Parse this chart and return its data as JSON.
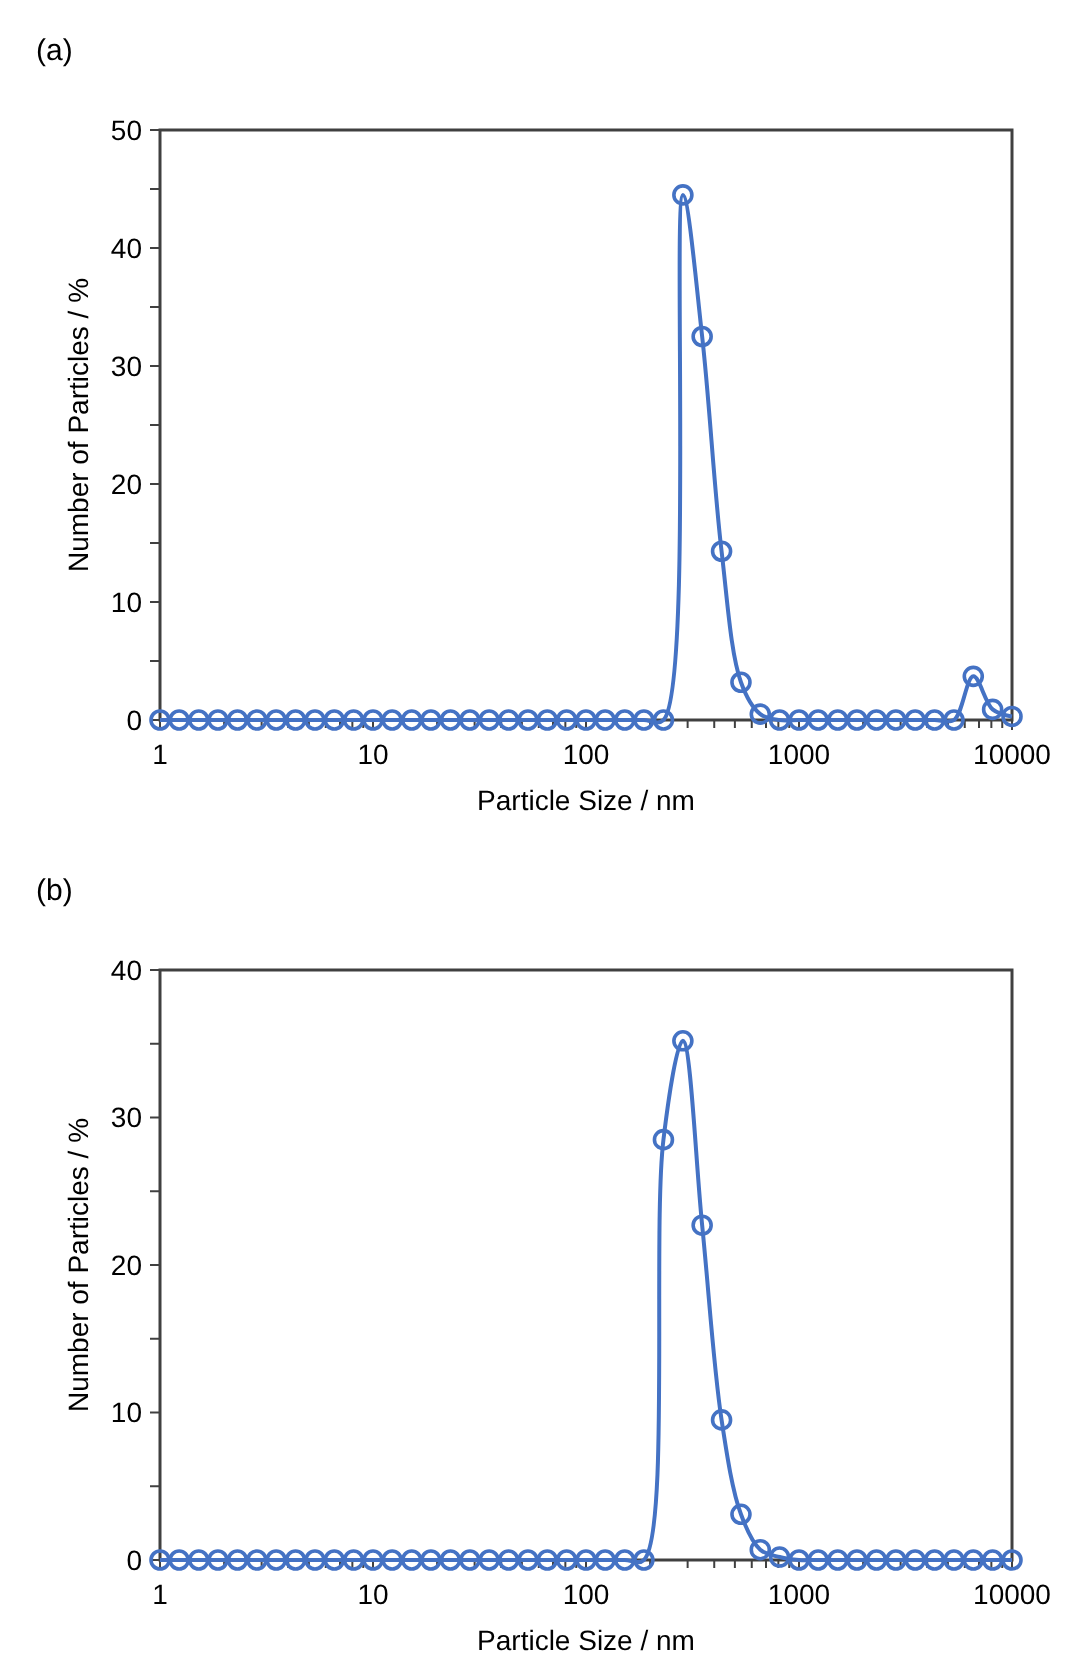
{
  "chart_data": [
    {
      "type": "line",
      "title": "(a)",
      "xlabel": "Particle Size / nm",
      "ylabel": "Number of Particles / %",
      "log": "x",
      "marker": "circle",
      "line_style": "solid",
      "grid": false,
      "xlim": [
        1,
        10000
      ],
      "ylim": [
        0,
        50
      ],
      "xticks": [
        1,
        {
          "value": 2,
          "label": null
        },
        {
          "value": 3,
          "label": null
        },
        {
          "value": 4,
          "label": null
        },
        {
          "value": 5,
          "label": null
        },
        {
          "value": 6,
          "label": null
        },
        {
          "value": 7,
          "label": null
        },
        {
          "value": 8,
          "label": null
        },
        {
          "value": 9,
          "label": null
        },
        10,
        {
          "value": 20,
          "label": null
        },
        {
          "value": 30,
          "label": null
        },
        {
          "value": 40,
          "label": null
        },
        {
          "value": 50,
          "label": null
        },
        {
          "value": 60,
          "label": null
        },
        {
          "value": 70,
          "label": null
        },
        {
          "value": 80,
          "label": null
        },
        {
          "value": 90,
          "label": null
        },
        100,
        {
          "value": 200,
          "label": null
        },
        {
          "value": 300,
          "label": null
        },
        {
          "value": 400,
          "label": null
        },
        {
          "value": 500,
          "label": null
        },
        {
          "value": 600,
          "label": null
        },
        {
          "value": 700,
          "label": null
        },
        {
          "value": 800,
          "label": null
        },
        {
          "value": 900,
          "label": null
        },
        1000,
        {
          "value": 2000,
          "label": null
        },
        {
          "value": 3000,
          "label": null
        },
        {
          "value": 4000,
          "label": null
        },
        {
          "value": 5000,
          "label": null
        },
        {
          "value": 6000,
          "label": null
        },
        {
          "value": 7000,
          "label": null
        },
        {
          "value": 8000,
          "label": null
        },
        {
          "value": 9000,
          "label": null
        },
        10000
      ],
      "yticks": [
        0,
        {
          "value": 5,
          "label": null
        },
        10,
        {
          "value": 15,
          "label": null
        },
        20,
        {
          "value": 25,
          "label": null
        },
        30,
        {
          "value": 35,
          "label": null
        },
        40,
        {
          "value": 45,
          "label": null
        },
        50
      ],
      "x": [
        1,
        1.23,
        1.52,
        1.87,
        2.31,
        2.85,
        3.51,
        4.33,
        5.34,
        6.58,
        8.11,
        10,
        12.3,
        15.2,
        18.7,
        23.1,
        28.5,
        35.1,
        43.3,
        53.4,
        65.8,
        81.1,
        100,
        123,
        152,
        187,
        231,
        285,
        351,
        433,
        534,
        658,
        811,
        1000,
        1230,
        1520,
        1870,
        2310,
        2850,
        3510,
        4330,
        5340,
        6580,
        8110,
        10000
      ],
      "series": [
        {
          "color": "#4472c4",
          "values": [
            0,
            0,
            0,
            0,
            0,
            0,
            0,
            0,
            0,
            0,
            0,
            0,
            0,
            0,
            0,
            0,
            0,
            0,
            0,
            0,
            0,
            0,
            0,
            0,
            0,
            0,
            0,
            44.5,
            32.5,
            14.3,
            3.2,
            0.5,
            0,
            0,
            0,
            0,
            0,
            0,
            0,
            0,
            0,
            0,
            3.7,
            0.9,
            0.3
          ]
        }
      ]
    },
    {
      "type": "line",
      "title": "(b)",
      "xlabel": "Particle Size / nm",
      "ylabel": "Number of Particles / %",
      "log": "x",
      "marker": "circle",
      "line_style": "solid",
      "grid": false,
      "xlim": [
        1,
        10000
      ],
      "ylim": [
        0,
        40
      ],
      "xticks": [
        1,
        {
          "value": 2,
          "label": null
        },
        {
          "value": 3,
          "label": null
        },
        {
          "value": 4,
          "label": null
        },
        {
          "value": 5,
          "label": null
        },
        {
          "value": 6,
          "label": null
        },
        {
          "value": 7,
          "label": null
        },
        {
          "value": 8,
          "label": null
        },
        {
          "value": 9,
          "label": null
        },
        10,
        {
          "value": 20,
          "label": null
        },
        {
          "value": 30,
          "label": null
        },
        {
          "value": 40,
          "label": null
        },
        {
          "value": 50,
          "label": null
        },
        {
          "value": 60,
          "label": null
        },
        {
          "value": 70,
          "label": null
        },
        {
          "value": 80,
          "label": null
        },
        {
          "value": 90,
          "label": null
        },
        100,
        {
          "value": 200,
          "label": null
        },
        {
          "value": 300,
          "label": null
        },
        {
          "value": 400,
          "label": null
        },
        {
          "value": 500,
          "label": null
        },
        {
          "value": 600,
          "label": null
        },
        {
          "value": 700,
          "label": null
        },
        {
          "value": 800,
          "label": null
        },
        {
          "value": 900,
          "label": null
        },
        1000,
        {
          "value": 2000,
          "label": null
        },
        {
          "value": 3000,
          "label": null
        },
        {
          "value": 4000,
          "label": null
        },
        {
          "value": 5000,
          "label": null
        },
        {
          "value": 6000,
          "label": null
        },
        {
          "value": 7000,
          "label": null
        },
        {
          "value": 8000,
          "label": null
        },
        {
          "value": 9000,
          "label": null
        },
        10000
      ],
      "yticks": [
        0,
        {
          "value": 5,
          "label": null
        },
        10,
        {
          "value": 15,
          "label": null
        },
        20,
        {
          "value": 25,
          "label": null
        },
        30,
        {
          "value": 35,
          "label": null
        },
        40
      ],
      "x": [
        1,
        1.23,
        1.52,
        1.87,
        2.31,
        2.85,
        3.51,
        4.33,
        5.34,
        6.58,
        8.11,
        10,
        12.3,
        15.2,
        18.7,
        23.1,
        28.5,
        35.1,
        43.3,
        53.4,
        65.8,
        81.1,
        100,
        123,
        152,
        187,
        231,
        285,
        351,
        433,
        534,
        658,
        811,
        1000,
        1230,
        1520,
        1870,
        2310,
        2850,
        3510,
        4330,
        5340,
        6580,
        8110,
        10000
      ],
      "series": [
        {
          "color": "#4472c4",
          "values": [
            0,
            0,
            0,
            0,
            0,
            0,
            0,
            0,
            0,
            0,
            0,
            0,
            0,
            0,
            0,
            0,
            0,
            0,
            0,
            0,
            0,
            0,
            0,
            0,
            0,
            0,
            28.5,
            35.2,
            22.7,
            9.5,
            3.1,
            0.7,
            0.2,
            0,
            0,
            0,
            0,
            0,
            0,
            0,
            0,
            0,
            0,
            0,
            0
          ]
        }
      ]
    }
  ]
}
